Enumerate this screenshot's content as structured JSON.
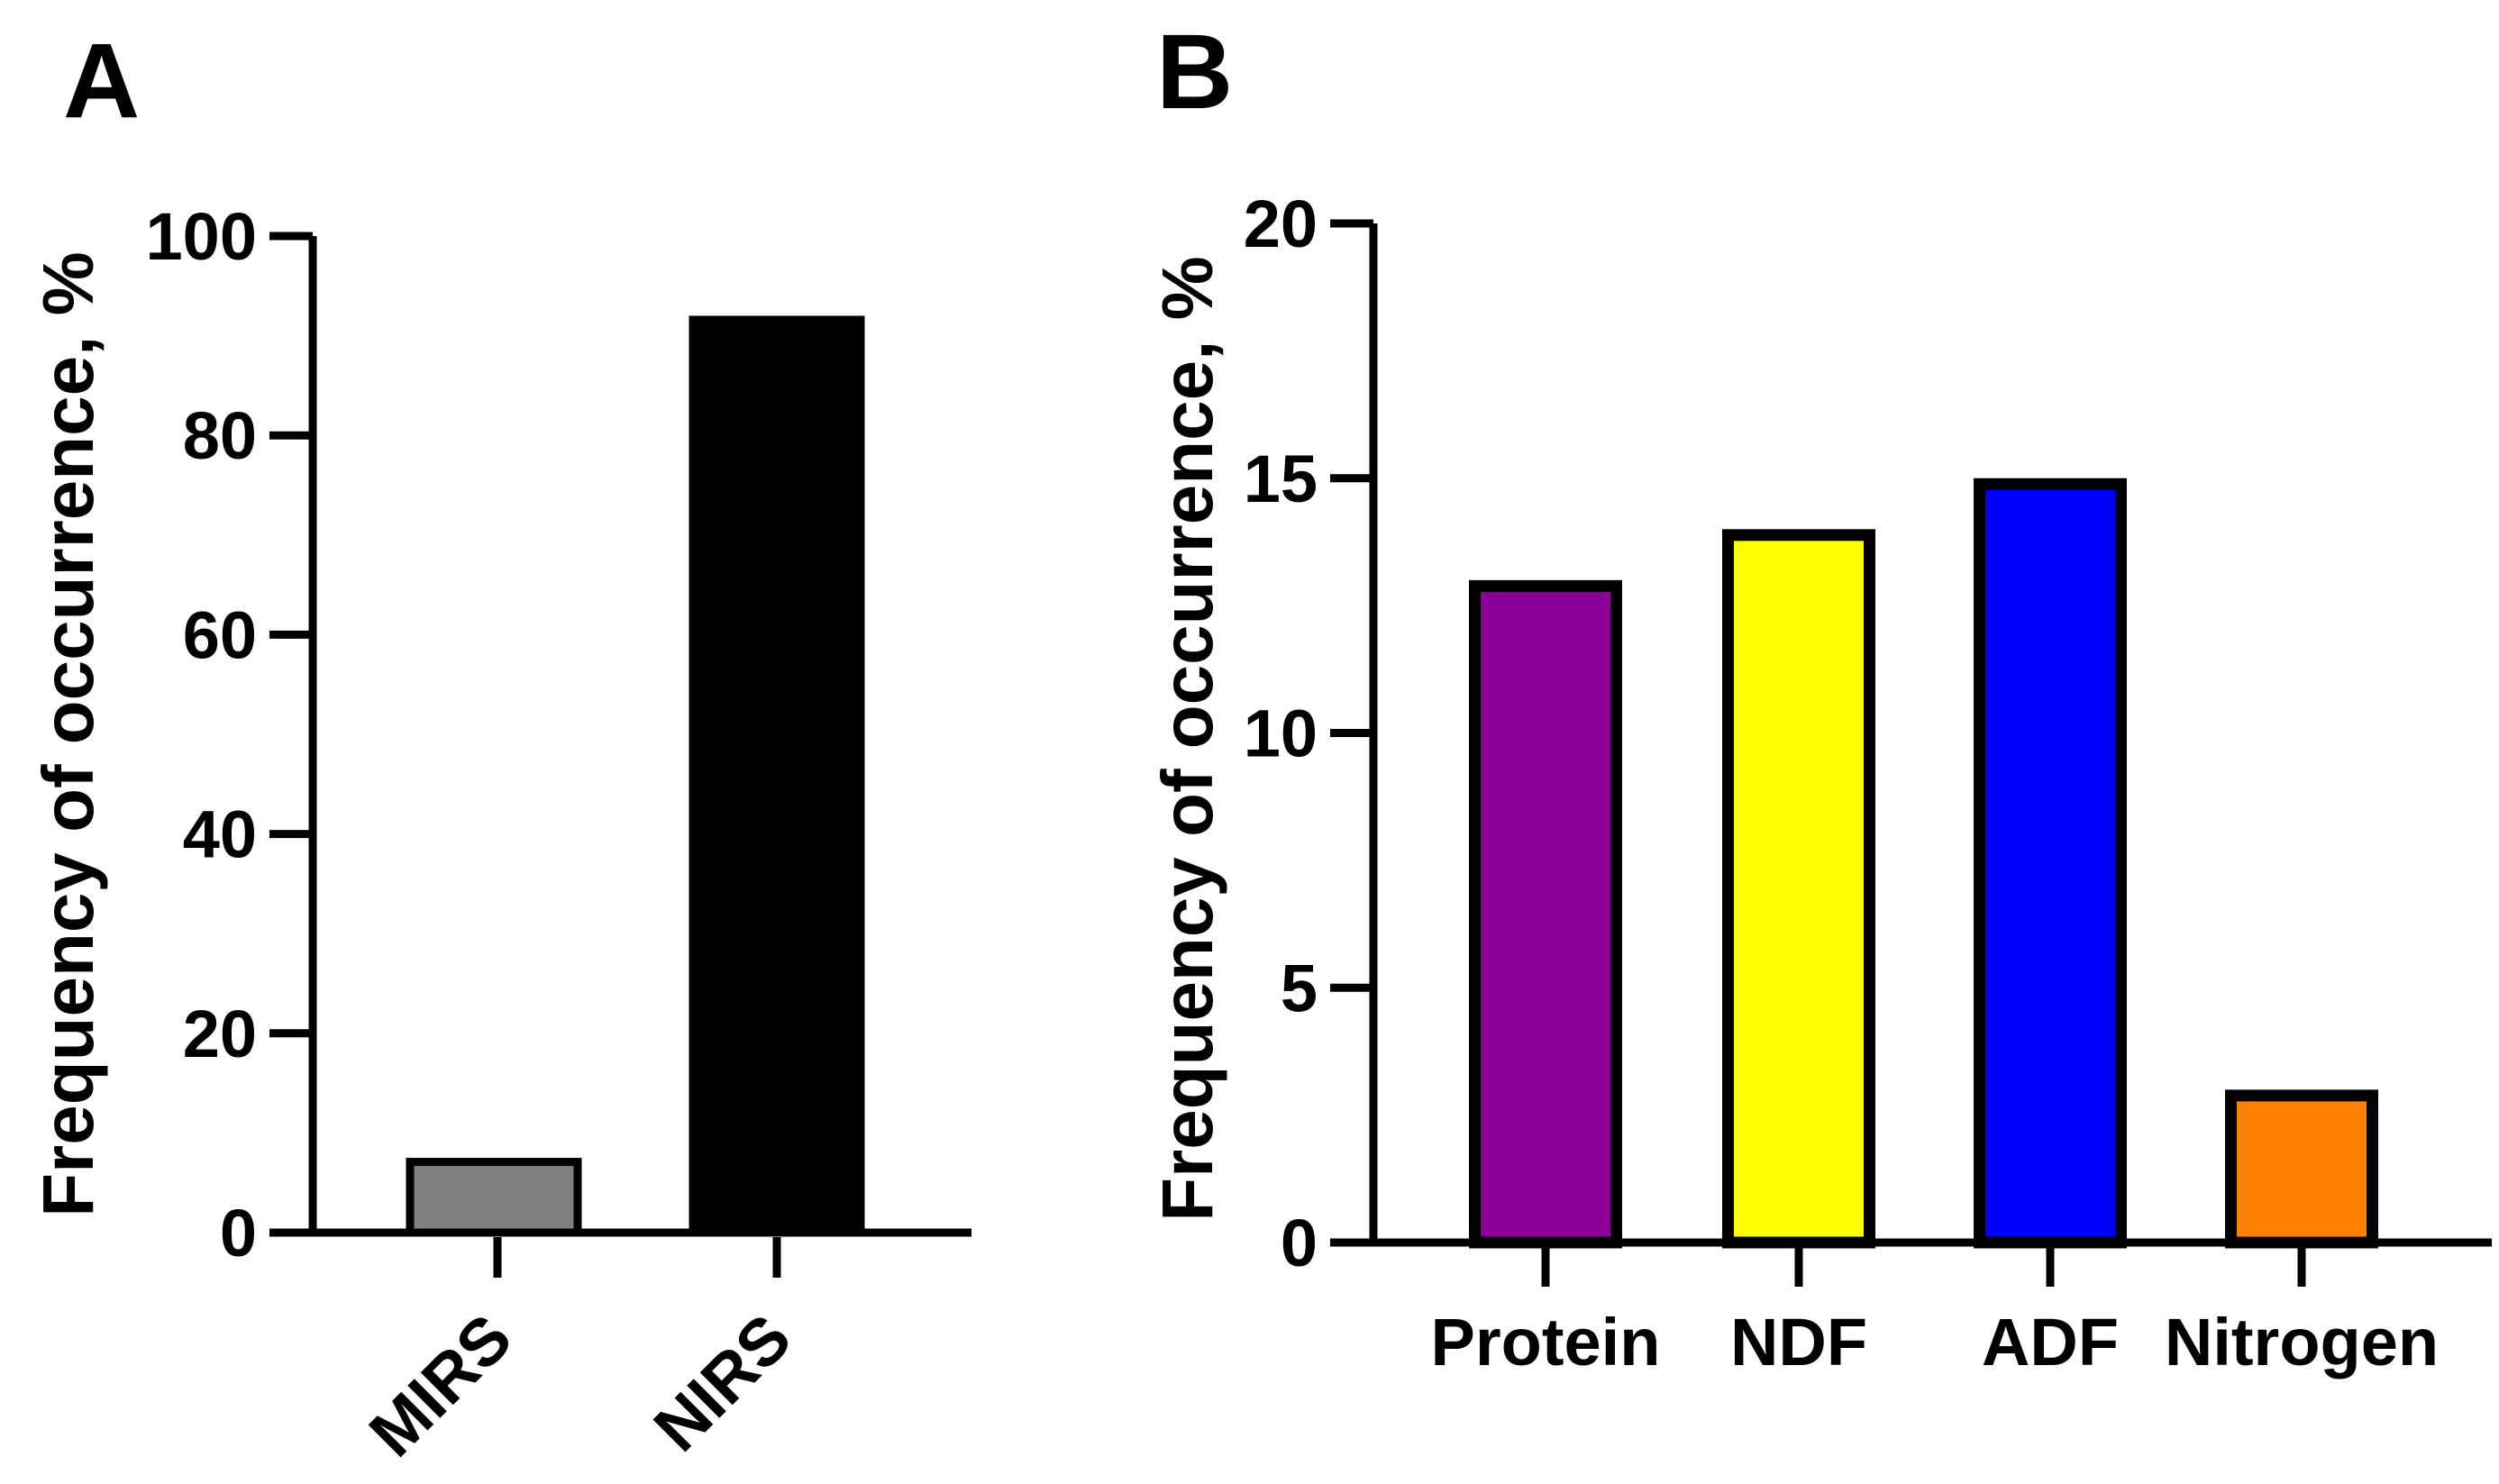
{
  "chart_data": [
    {
      "panel_label": "A",
      "type": "bar",
      "title": "",
      "xlabel": "",
      "ylabel": "Frequency of occurrence, %",
      "ylim": [
        0,
        100
      ],
      "yticks": [
        0,
        20,
        40,
        60,
        80,
        100
      ],
      "yticks_text": [
        "0",
        "20",
        "40",
        "60",
        "80",
        "100"
      ],
      "categories": [
        "MIRS",
        "NIRS"
      ],
      "values": [
        7.5,
        92
      ],
      "colors": [
        "#808080",
        "#000000"
      ],
      "grid": false,
      "legend": "none"
    },
    {
      "panel_label": "B",
      "type": "bar",
      "title": "",
      "xlabel": "",
      "ylabel": "Frequency of occurrence, %",
      "ylim": [
        0,
        20
      ],
      "yticks": [
        0,
        5,
        10,
        15,
        20
      ],
      "yticks_text": [
        "0",
        "5",
        "10",
        "15",
        "20"
      ],
      "categories": [
        "Protein",
        "NDF",
        "ADF",
        "Nitrogen"
      ],
      "values": [
        13,
        14,
        15,
        3
      ],
      "colors": [
        "#8B0099",
        "#FFFF00",
        "#0000FF",
        "#FF8000"
      ],
      "grid": false,
      "legend": "none"
    }
  ]
}
